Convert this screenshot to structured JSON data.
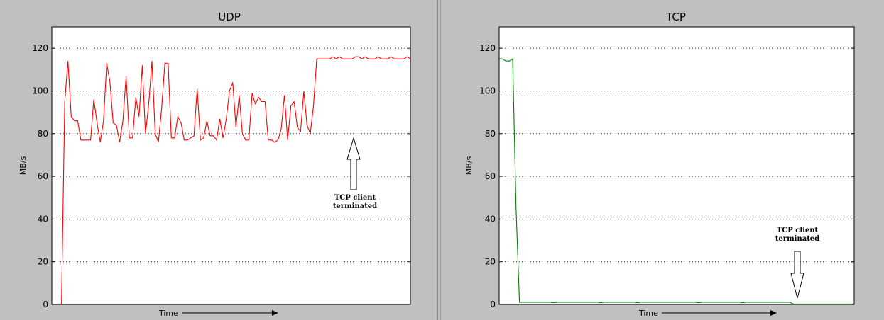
{
  "chart_data": [
    {
      "type": "line",
      "title": "UDP",
      "xlabel": "Time",
      "ylabel": "MB/s",
      "ylim": [
        0,
        130
      ],
      "yticks": [
        0,
        20,
        40,
        60,
        80,
        100,
        120
      ],
      "grid": "horizontal-dotted",
      "color": "#ff0000",
      "annotation": {
        "text": [
          "TCP client",
          "terminated"
        ],
        "arrow": "up"
      },
      "series": [
        {
          "values": [
            0,
            0,
            0,
            0,
            95,
            114,
            88,
            86,
            86,
            77,
            77,
            77,
            77,
            96,
            85,
            76,
            86,
            113,
            104,
            85,
            84,
            76,
            86,
            107,
            78,
            78,
            97,
            88,
            112,
            80,
            94,
            114,
            80,
            76,
            92,
            113,
            113,
            78,
            78,
            88,
            85,
            77,
            77,
            78,
            79,
            101,
            77,
            78,
            86,
            79,
            79,
            77,
            87,
            78,
            87,
            100,
            104,
            83,
            98,
            80,
            77,
            77,
            99,
            94,
            97,
            95,
            95,
            77,
            77,
            76,
            77,
            82,
            98,
            77,
            93,
            95,
            83,
            81,
            100,
            84,
            80,
            93,
            115,
            115,
            115,
            115,
            115,
            116,
            115,
            116,
            115,
            115,
            115,
            115,
            116,
            116,
            115,
            116,
            115,
            115,
            115,
            116,
            115,
            115,
            115,
            116,
            115,
            115,
            115,
            115,
            116,
            115
          ]
        }
      ]
    },
    {
      "type": "line",
      "title": "TCP",
      "xlabel": "Time",
      "ylabel": "MB/s",
      "ylim": [
        0,
        130
      ],
      "yticks": [
        0,
        20,
        40,
        60,
        80,
        100,
        120
      ],
      "grid": "horizontal-dotted",
      "color": "#008000",
      "annotation": {
        "text": [
          "TCP client",
          "terminated"
        ],
        "arrow": "down"
      },
      "series": [
        {
          "values": [
            115,
            115,
            114,
            114,
            115,
            45,
            1,
            1,
            1,
            1,
            1,
            1,
            1,
            1,
            1,
            1,
            0.8,
            1,
            1,
            1,
            1,
            1,
            1,
            1,
            1,
            1,
            1,
            1,
            1,
            1,
            0.8,
            1,
            1,
            1,
            1,
            1,
            1,
            1,
            1,
            1,
            1,
            0.8,
            1,
            1,
            1,
            1,
            1,
            1,
            1,
            1,
            1,
            1,
            1,
            1,
            1,
            1,
            1,
            1,
            1,
            0.8,
            1,
            1,
            1,
            1,
            1,
            1,
            1,
            1,
            1,
            1,
            1,
            1,
            0.8,
            1,
            1,
            1,
            1,
            1,
            1,
            1,
            1,
            1,
            1,
            1,
            1,
            1,
            1,
            0.2,
            0.2,
            0.2,
            0.2,
            0.2,
            0.2,
            0.2,
            0.2,
            0.2,
            0.2,
            0.2,
            0.2,
            0.2,
            0.2,
            0.2,
            0.2,
            0.2,
            0.2,
            0.2
          ]
        }
      ]
    }
  ]
}
